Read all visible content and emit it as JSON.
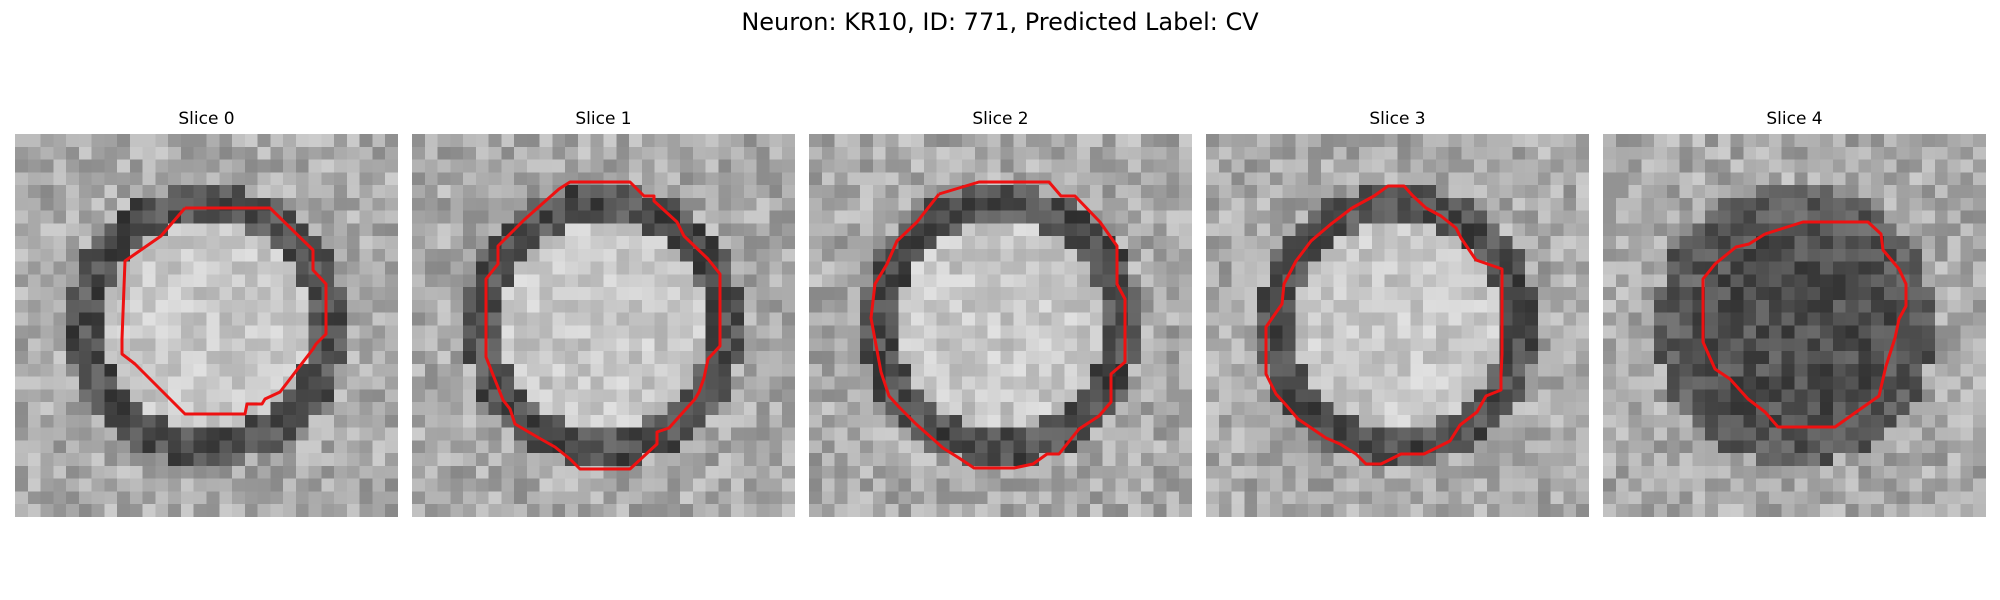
{
  "figure": {
    "title": "Neuron: KR10, ID: 771, Predicted Label: CV"
  },
  "contour_color": "#ee1111",
  "panels": [
    {
      "title": "Slice 0",
      "seed": 11,
      "core_tone": "light",
      "ring_tone": "dark"
    },
    {
      "title": "Slice 1",
      "seed": 23,
      "core_tone": "light",
      "ring_tone": "dark"
    },
    {
      "title": "Slice 2",
      "seed": 37,
      "core_tone": "light",
      "ring_tone": "dark"
    },
    {
      "title": "Slice 3",
      "seed": 53,
      "core_tone": "light",
      "ring_tone": "dark"
    },
    {
      "title": "Slice 4",
      "seed": 71,
      "core_tone": "dark",
      "ring_tone": "dark"
    }
  ]
}
